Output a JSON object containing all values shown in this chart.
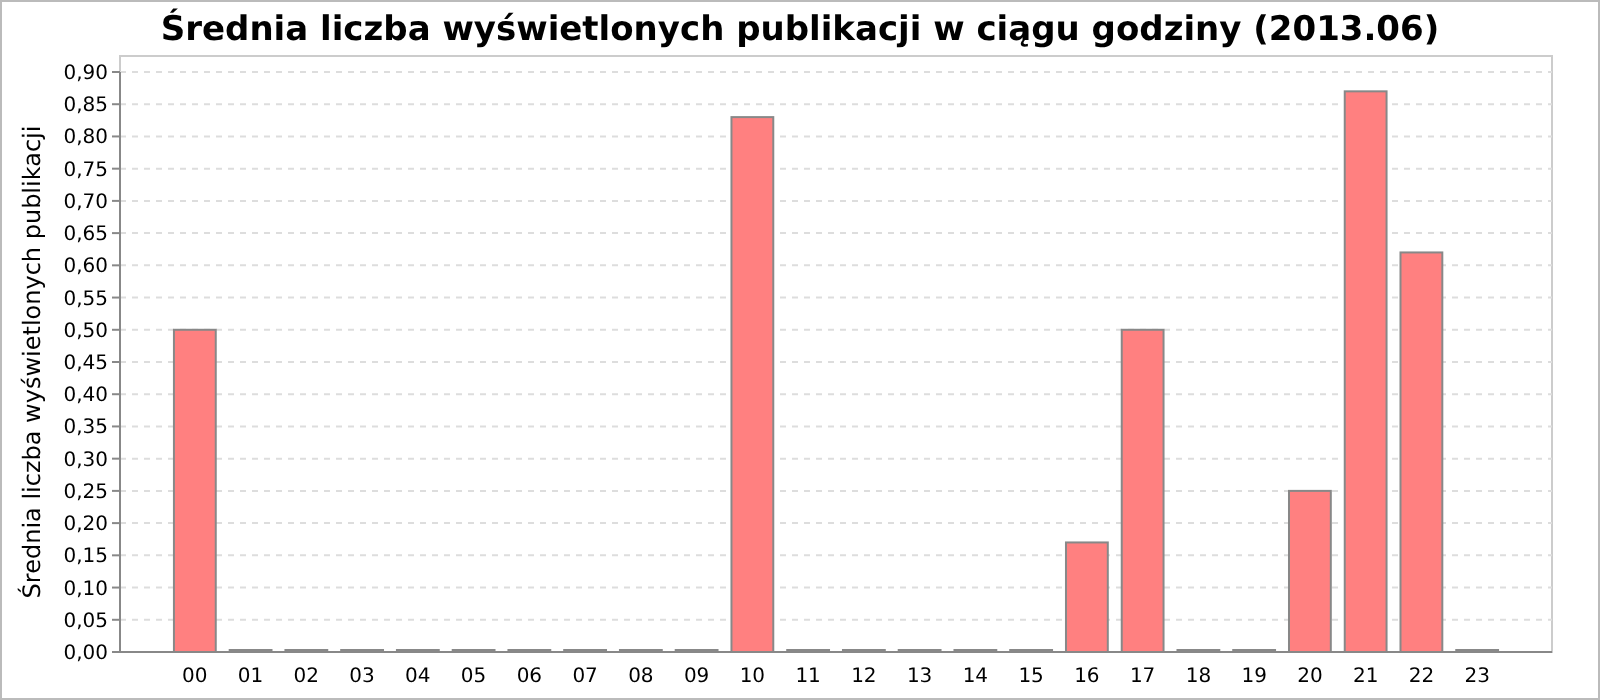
{
  "chart_data": {
    "type": "bar",
    "title": "Średnia liczba wyświetlonych publikacji w ciągu godziny (2013.06)",
    "ylabel": "Średnia liczba wyświetlonych publikacji",
    "categories": [
      "00",
      "01",
      "02",
      "03",
      "04",
      "05",
      "06",
      "07",
      "08",
      "09",
      "10",
      "11",
      "12",
      "13",
      "14",
      "15",
      "16",
      "17",
      "18",
      "19",
      "20",
      "21",
      "22",
      "23"
    ],
    "values": [
      0.5,
      0,
      0,
      0,
      0,
      0,
      0,
      0,
      0,
      0,
      0.83,
      0,
      0,
      0,
      0,
      0,
      0.17,
      0.5,
      0,
      0,
      0.25,
      0.87,
      0.62,
      0
    ],
    "color": "#ff8080",
    "ylim": [
      0,
      0.9
    ],
    "yticks": [
      {
        "value": 0,
        "label": "0,00"
      },
      {
        "value": 0.05,
        "label": "0,05"
      },
      {
        "value": 0.1,
        "label": "0,10"
      },
      {
        "value": 0.15,
        "label": "0,15"
      },
      {
        "value": 0.2,
        "label": "0,20"
      },
      {
        "value": 0.25,
        "label": "0,25"
      },
      {
        "value": 0.3,
        "label": "0,30"
      },
      {
        "value": 0.35,
        "label": "0,35"
      },
      {
        "value": 0.4,
        "label": "0,40"
      },
      {
        "value": 0.45,
        "label": "0,45"
      },
      {
        "value": 0.5,
        "label": "0,50"
      },
      {
        "value": 0.55,
        "label": "0,55"
      },
      {
        "value": 0.6,
        "label": "0,60"
      },
      {
        "value": 0.65,
        "label": "0,65"
      },
      {
        "value": 0.7,
        "label": "0,70"
      },
      {
        "value": 0.75,
        "label": "0,75"
      },
      {
        "value": 0.8,
        "label": "0,80"
      },
      {
        "value": 0.85,
        "label": "0,85"
      },
      {
        "value": 0.9,
        "label": "0,90"
      }
    ],
    "grid": "y"
  }
}
